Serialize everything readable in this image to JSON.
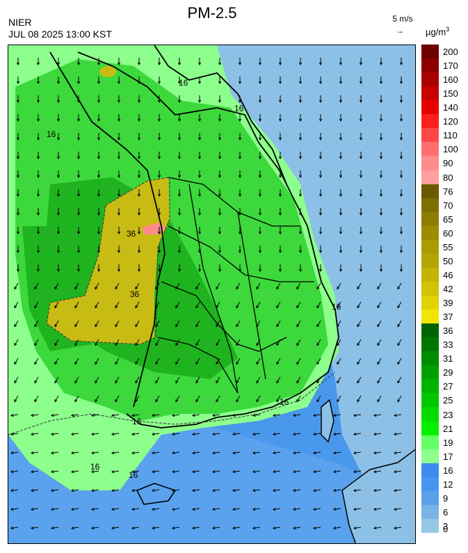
{
  "header": {
    "title": "PM-2.5",
    "agency": "NIER",
    "datetime": "JUL 08 2025 13:00 KST",
    "reference_vector": "5 m/s",
    "reference_arrow": "→",
    "unit_text": "µg/m",
    "unit_sup": "3"
  },
  "legend": {
    "labels": [
      "200",
      "170",
      "160",
      "150",
      "140",
      "120",
      "110",
      "100",
      "90",
      "80",
      "76",
      "70",
      "65",
      "60",
      "55",
      "50",
      "46",
      "42",
      "39",
      "37",
      "36",
      "33",
      "31",
      "29",
      "27",
      "25",
      "23",
      "21",
      "19",
      "17",
      "16",
      "12",
      "9",
      "6",
      "3",
      "0"
    ],
    "colors": [
      "#6e0000",
      "#8c0000",
      "#aa0000",
      "#c80000",
      "#e60000",
      "#ff1e1e",
      "#ff4646",
      "#ff6e6e",
      "#ff8c8c",
      "#ffa0a0",
      "#6b5a00",
      "#7d6e00",
      "#8c7d00",
      "#9b8c00",
      "#aa9b00",
      "#b4a500",
      "#c3b400",
      "#d2c300",
      "#e1d200",
      "#f0e600",
      "#006400",
      "#007800",
      "#008c00",
      "#00a000",
      "#00b400",
      "#00c800",
      "#00dc00",
      "#00f000",
      "#64ff64",
      "#8cff8c",
      "#3c8cf0",
      "#4696f0",
      "#5aa0eb",
      "#78b4e6",
      "#96c8e6"
    ]
  },
  "map": {
    "contour_labels": [
      "16",
      "16",
      "16",
      "16",
      "16",
      "16",
      "16",
      "36",
      "36",
      "16"
    ],
    "background_colors": {
      "sea_light": "#8cc0e6",
      "sea_mid": "#4a98ec",
      "green_light": "#8cff8c",
      "green_mid": "#3cd83c",
      "green_dark": "#1fb41f",
      "yellow": "#c8bb14",
      "pink": "#ff8c8c"
    }
  }
}
